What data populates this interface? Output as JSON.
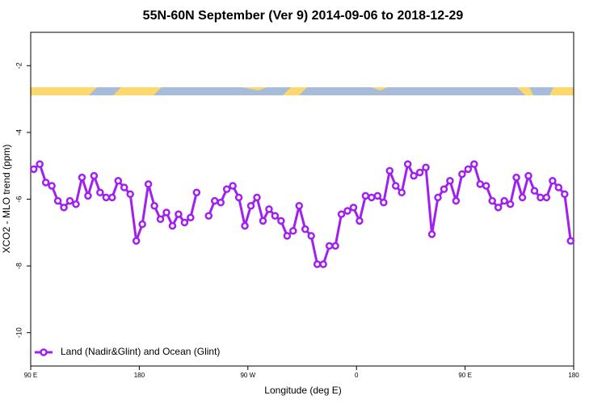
{
  "chart_data": {
    "type": "line",
    "title": "55N-60N September (Ver 9)   2014-09-06 to 2018-12-29",
    "x_label": "Longitude (deg E)",
    "y_label": "XCO2 - MLO trend (ppm)",
    "xlim": [
      90,
      540
    ],
    "ylim": [
      -11,
      -1
    ],
    "xticks": [
      {
        "value": 90,
        "label": "90 E"
      },
      {
        "value": 180,
        "label": "180"
      },
      {
        "value": 270,
        "label": "90 W"
      },
      {
        "value": 360,
        "label": "0"
      },
      {
        "value": 450,
        "label": "90 E"
      },
      {
        "value": 540,
        "label": "180"
      }
    ],
    "yticks": [
      -10,
      -8,
      -6,
      -4,
      -2
    ],
    "legend_position": "lower left",
    "x": [
      92.5,
      97.5,
      102.5,
      107.5,
      112.5,
      117.5,
      122.5,
      127.5,
      132.5,
      137.5,
      142.5,
      147.5,
      152.5,
      157.5,
      162.5,
      167.5,
      172.5,
      177.5,
      182.5,
      187.5,
      192.5,
      197.5,
      202.5,
      207.5,
      212.5,
      217.5,
      222.5,
      227.5,
      232.5,
      237.5,
      242.5,
      247.5,
      252.5,
      257.5,
      262.5,
      267.5,
      272.5,
      277.5,
      282.5,
      287.5,
      292.5,
      297.5,
      302.5,
      307.5,
      312.5,
      317.5,
      322.5,
      327.5,
      332.5,
      337.5,
      342.5,
      347.5,
      352.5,
      357.5,
      362.5,
      367.5,
      372.5,
      377.5,
      382.5,
      387.5,
      392.5,
      397.5,
      402.5,
      407.5,
      412.5,
      417.5,
      422.5,
      427.5,
      432.5,
      437.5,
      442.5,
      447.5,
      452.5,
      457.5,
      462.5,
      467.5,
      472.5,
      477.5,
      482.5,
      487.5,
      492.5,
      497.5,
      502.5,
      507.5,
      512.5,
      517.5,
      522.5,
      527.5,
      532.5,
      537.5
    ],
    "series": [
      {
        "name": "Land (Nadir&Glint) and Ocean (Glint)",
        "color": "#a020f0",
        "values": [
          -5.1,
          -4.95,
          -5.5,
          -5.6,
          -6.05,
          -6.25,
          -6.05,
          -6.15,
          -5.35,
          -5.9,
          -5.3,
          -5.8,
          -5.95,
          -5.95,
          -5.45,
          -5.65,
          -5.85,
          -7.25,
          -6.75,
          -5.55,
          -6.2,
          -6.6,
          -6.4,
          -6.8,
          -6.45,
          -6.7,
          -6.55,
          -5.8,
          null,
          -6.5,
          -6.05,
          -6.1,
          -5.7,
          -5.6,
          -5.95,
          -6.8,
          -6.2,
          -5.95,
          -6.65,
          -6.3,
          -6.5,
          -6.65,
          -7.1,
          -6.95,
          -6.2,
          -6.9,
          -7.1,
          -7.95,
          -7.95,
          -7.4,
          -7.4,
          -6.45,
          -6.35,
          -6.25,
          -6.65,
          -5.9,
          -5.95,
          -5.9,
          -6.1,
          -5.15,
          -5.6,
          -5.8,
          -4.95,
          -5.3,
          -5.2,
          -5.05,
          -7.05,
          -5.95,
          -5.7,
          -5.45,
          -6.05,
          -5.25,
          -5.1,
          -4.95,
          -5.55,
          -5.6,
          -6.05,
          -6.25,
          -6.05,
          -6.15,
          -5.35,
          -5.95,
          -5.3,
          -5.75,
          -5.95,
          -5.95,
          -5.45,
          -5.65,
          -5.85,
          -7.25
        ]
      }
    ]
  }
}
